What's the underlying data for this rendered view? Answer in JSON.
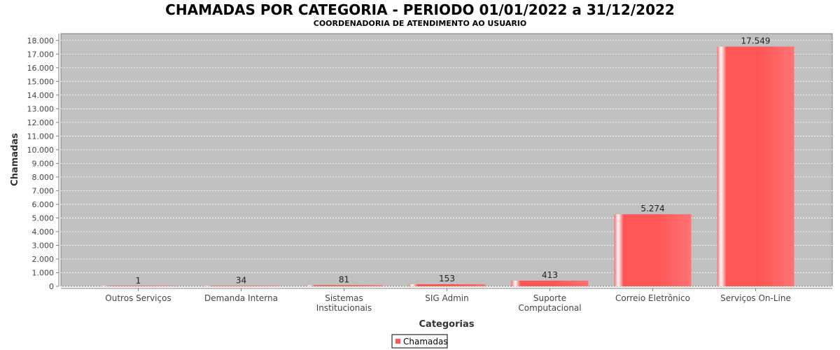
{
  "chart_data": {
    "type": "bar",
    "title": "CHAMADAS POR CATEGORIA - PERIODO 01/01/2022 a 31/12/2022",
    "subtitle": "COORDENADORIA DE ATENDIMENTO AO USUARIO",
    "xlabel": "Categorias",
    "ylabel": "Chamadas",
    "ylim": [
      0,
      18000
    ],
    "yticks": [
      0,
      1000,
      2000,
      3000,
      4000,
      5000,
      6000,
      7000,
      8000,
      9000,
      10000,
      11000,
      12000,
      13000,
      14000,
      15000,
      16000,
      17000,
      18000
    ],
    "ytick_labels": [
      "0",
      "1.000",
      "2.000",
      "3.000",
      "4.000",
      "5.000",
      "6.000",
      "7.000",
      "8.000",
      "9.000",
      "10.000",
      "11.000",
      "12.000",
      "13.000",
      "14.000",
      "15.000",
      "16.000",
      "17.000",
      "18.000"
    ],
    "categories": [
      [
        "Outros Serviços"
      ],
      [
        "Demanda Interna"
      ],
      [
        "Sistemas",
        "Institucionais"
      ],
      [
        "SIG Admin"
      ],
      [
        "Suporte",
        "Computacional"
      ],
      [
        "Correio Eletrônico"
      ],
      [
        "Serviços On-Line"
      ]
    ],
    "series": [
      {
        "name": "Chamadas",
        "values": [
          1,
          34,
          81,
          153,
          413,
          5274,
          17549
        ],
        "value_labels": [
          "1",
          "34",
          "81",
          "153",
          "413",
          "5.274",
          "17.549"
        ]
      }
    ],
    "grid": true,
    "legend_position": "bottom-center",
    "colors": {
      "bar": "#ff5555",
      "plot_background": "#c0c0c0",
      "gridline": "#ffffff"
    }
  }
}
